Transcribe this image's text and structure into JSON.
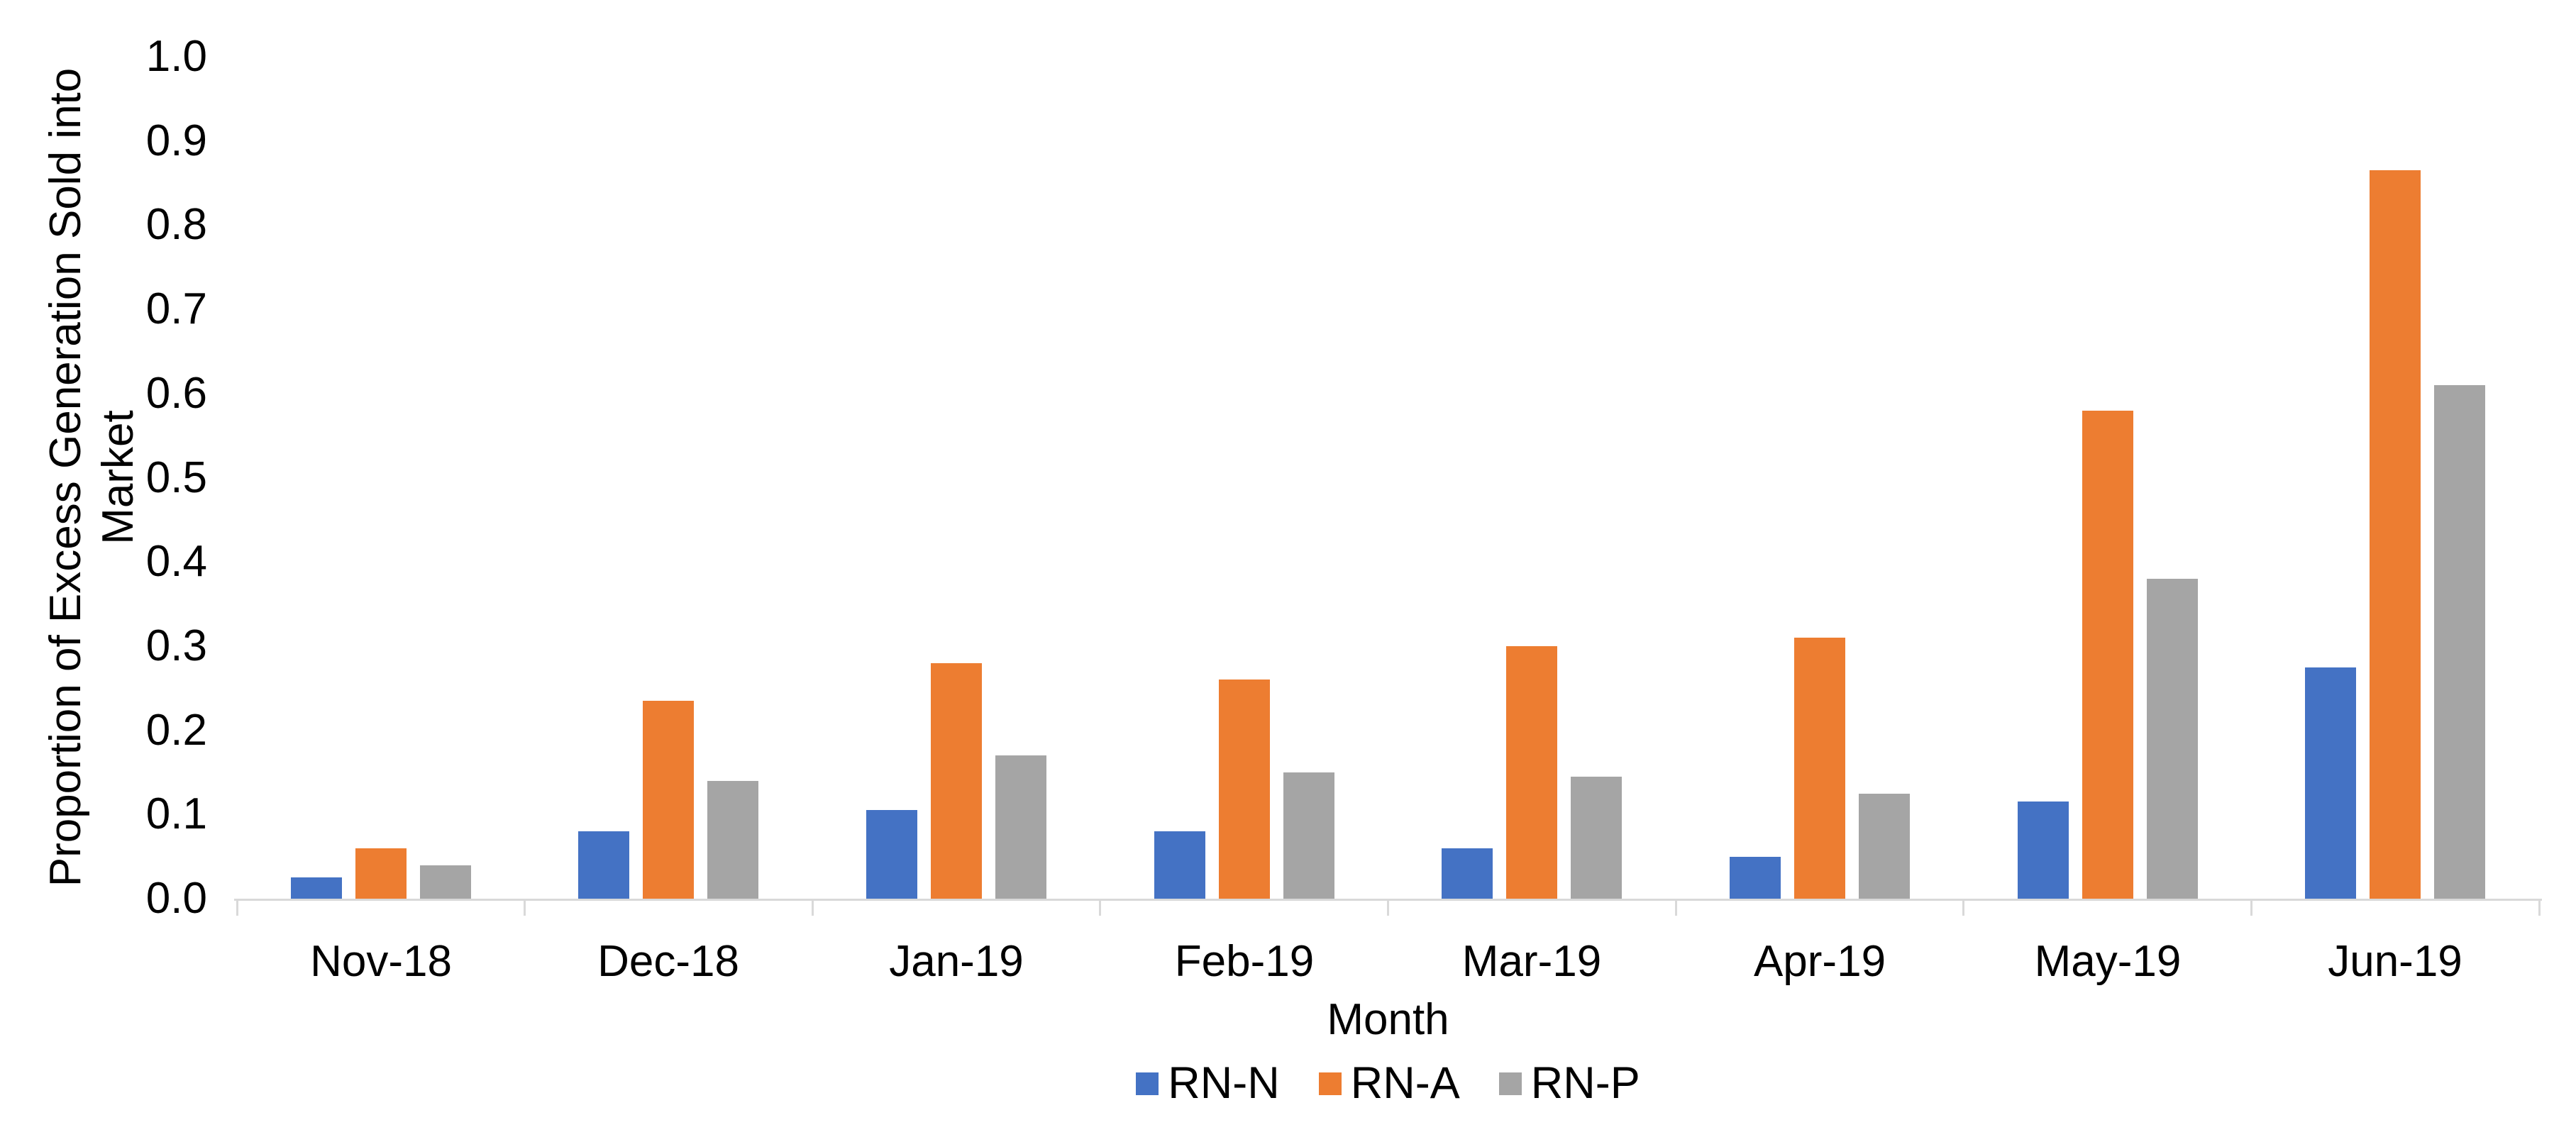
{
  "chart_data": {
    "type": "bar",
    "title": "",
    "xlabel": "Month",
    "ylabel": "Proportion of Excess Generation Sold into Market",
    "ylabel_lines": [
      "Proportion of Excess Generation Sold into",
      "Market"
    ],
    "categories": [
      "Nov-18",
      "Dec-18",
      "Jan-19",
      "Feb-19",
      "Mar-19",
      "Apr-19",
      "May-19",
      "Jun-19"
    ],
    "series": [
      {
        "name": "RN-N",
        "color": "#4472C4",
        "values": [
          0.025,
          0.08,
          0.105,
          0.08,
          0.06,
          0.05,
          0.115,
          0.275
        ]
      },
      {
        "name": "RN-A",
        "color": "#ED7D31",
        "values": [
          0.06,
          0.235,
          0.28,
          0.26,
          0.3,
          0.31,
          0.58,
          0.865
        ]
      },
      {
        "name": "RN-P",
        "color": "#A5A5A5",
        "values": [
          0.04,
          0.14,
          0.17,
          0.15,
          0.145,
          0.125,
          0.38,
          0.61
        ]
      }
    ],
    "ylim": [
      0,
      1
    ],
    "y_tick_step": 0.1,
    "y_ticks": [
      "0.0",
      "0.1",
      "0.2",
      "0.3",
      "0.4",
      "0.5",
      "0.6",
      "0.7",
      "0.8",
      "0.9",
      "1.0"
    ],
    "grid": false,
    "legend_position": "bottom",
    "axis_color": "#D9D9D9",
    "text_color": "#000000",
    "background_color": "#FFFFFF"
  }
}
